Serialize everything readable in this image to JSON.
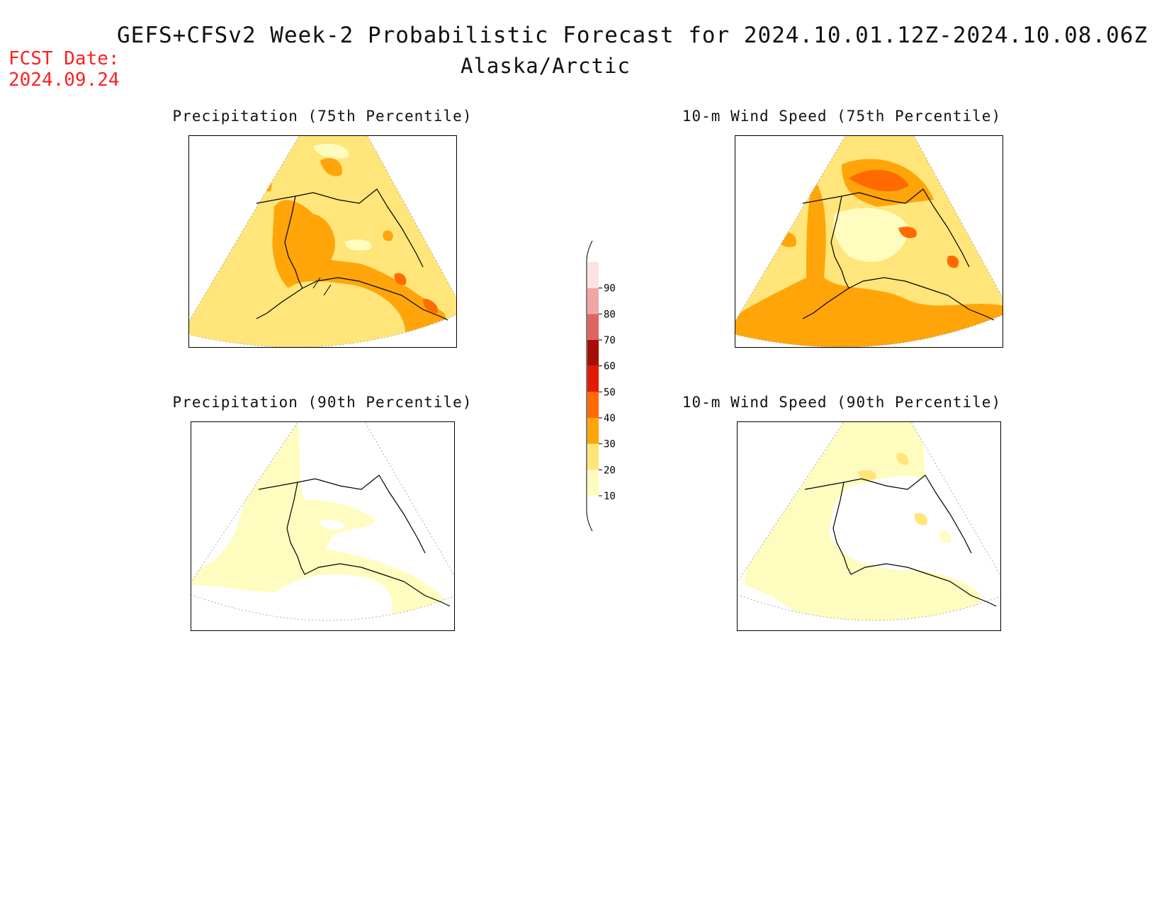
{
  "header": {
    "title": "GEFS+CFSv2 Week-2 Probabilistic Forecast for 2024.10.01.12Z-2024.10.08.06Z",
    "subtitle": "Alaska/Arctic",
    "fcst_label": "FCST Date:",
    "fcst_date": "2024.09.24"
  },
  "panels": [
    {
      "title": "Precipitation (75th Percentile)"
    },
    {
      "title": "10-m Wind Speed (75th Percentile)"
    },
    {
      "title": "Precipitation (90th Percentile)"
    },
    {
      "title": "10-m Wind Speed (90th Percentile)"
    }
  ],
  "colorbar": {
    "levels": [
      "10",
      "20",
      "30",
      "40",
      "50",
      "60",
      "70",
      "80",
      "90"
    ],
    "colors": [
      "#fffcbf",
      "#ffe57a",
      "#ffa50a",
      "#ff6b00",
      "#e31a00",
      "#a50f05",
      "#de6464",
      "#f2a5a5",
      "#fde2e2"
    ]
  }
}
